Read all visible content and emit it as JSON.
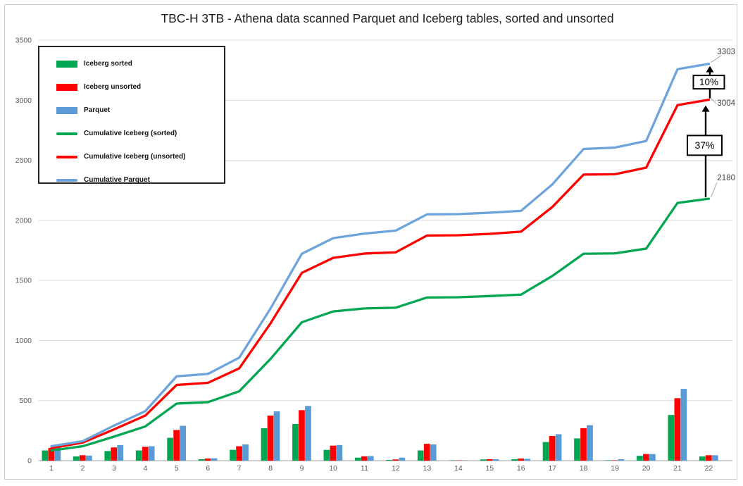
{
  "chart_data": {
    "type": "bar+line",
    "title": "TBC-H 3TB - Athena data scanned Parquet and Iceberg tables, sorted and unsorted",
    "categories": [
      "1",
      "2",
      "3",
      "4",
      "5",
      "6",
      "7",
      "8",
      "9",
      "10",
      "11",
      "12",
      "13",
      "14",
      "15",
      "16",
      "17",
      "18",
      "19",
      "20",
      "21",
      "22"
    ],
    "xlabel": "",
    "ylabel": "",
    "ylim": [
      0,
      3500
    ],
    "yticks": [
      0,
      500,
      1000,
      1500,
      2000,
      2500,
      3000,
      3500
    ],
    "grid": true,
    "legend_position": "top-left",
    "bar_series": [
      {
        "name": "Iceberg sorted",
        "color_key": "green",
        "values": [
          85,
          35,
          80,
          85,
          190,
          12,
          90,
          270,
          305,
          90,
          25,
          6,
          85,
          2,
          10,
          12,
          155,
          185,
          3,
          40,
          380,
          35
        ]
      },
      {
        "name": "Iceberg unsorted",
        "color_key": "red",
        "values": [
          105,
          45,
          110,
          115,
          255,
          18,
          120,
          375,
          420,
          125,
          36,
          10,
          140,
          2,
          12,
          18,
          205,
          270,
          3,
          55,
          520,
          45
        ]
      },
      {
        "name": "Parquet",
        "color_key": "blue",
        "values": [
          120,
          42,
          130,
          120,
          290,
          20,
          135,
          410,
          455,
          130,
          38,
          25,
          135,
          2,
          12,
          15,
          220,
          295,
          12,
          55,
          597,
          45
        ]
      }
    ],
    "line_series": [
      {
        "name": "Cumulative Iceberg (sorted)",
        "color_key": "green",
        "cumulative_of": "Iceberg sorted",
        "total": 2180
      },
      {
        "name": "Cumulative Iceberg (unsorted)",
        "color_key": "red",
        "cumulative_of": "Iceberg unsorted",
        "total": 3004
      },
      {
        "name": "Cumulative Parquet",
        "color_key": "blue_line",
        "cumulative_of": "Parquet",
        "total": 3303
      }
    ],
    "legend": [
      {
        "label": "Iceberg sorted",
        "swatch": "bar",
        "color_key": "green"
      },
      {
        "label": "Iceberg unsorted",
        "swatch": "bar",
        "color_key": "red"
      },
      {
        "label": "Parquet",
        "swatch": "bar",
        "color_key": "blue"
      },
      {
        "label": "Cumulative Iceberg (sorted)",
        "swatch": "line",
        "color_key": "green"
      },
      {
        "label": "Cumulative Iceberg (unsorted)",
        "swatch": "line",
        "color_key": "red"
      },
      {
        "label": "Cumulative Parquet",
        "swatch": "line",
        "color_key": "blue_line"
      }
    ],
    "annotations": {
      "end_labels": [
        {
          "text": "3303",
          "series": "Cumulative Parquet"
        },
        {
          "text": "3004",
          "series": "Cumulative Iceberg (unsorted)"
        },
        {
          "text": "2180",
          "series": "Cumulative Iceberg (sorted)"
        }
      ],
      "callouts": [
        {
          "text": "10%",
          "from_series": "Cumulative Iceberg (unsorted)",
          "to_series": "Cumulative Parquet"
        },
        {
          "text": "37%",
          "from_series": "Cumulative Iceberg (sorted)",
          "to_series": "Cumulative Iceberg (unsorted)"
        }
      ]
    },
    "colors": {
      "green": "#00A651",
      "red": "#FE0000",
      "blue": "#5B9BD5",
      "blue_line": "#6EA4DC",
      "grid": "#D9D9D9",
      "axis": "#BFBFBF",
      "tick_text": "#595959",
      "annotation_text": "#404040",
      "leader": "#A6A6A6",
      "callout_black": "#000000"
    }
  }
}
